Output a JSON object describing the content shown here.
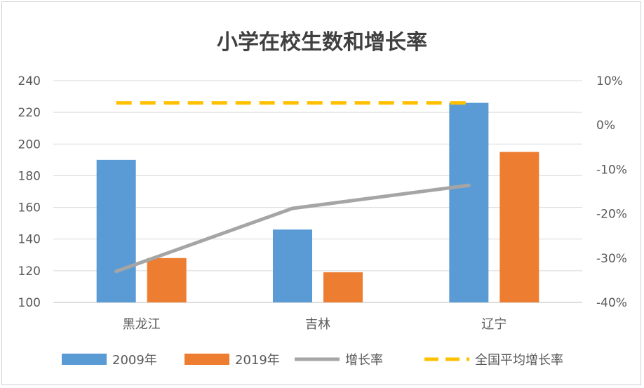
{
  "chart_data": {
    "type": "bar",
    "title": "小学在校生数和增长率",
    "categories": [
      "黑龙江",
      "吉林",
      "辽宁"
    ],
    "series": [
      {
        "name": "2009年",
        "kind": "bar",
        "axis": "left",
        "color": "#5B9BD5",
        "values": [
          190,
          146,
          226
        ]
      },
      {
        "name": "2019年",
        "kind": "bar",
        "axis": "left",
        "color": "#ED7D31",
        "values": [
          128,
          119,
          195
        ]
      },
      {
        "name": "增长率",
        "kind": "line",
        "axis": "right",
        "color": "#A5A5A5",
        "values": [
          -33,
          -18.8,
          -13.6
        ]
      },
      {
        "name": "全国平均增长率",
        "kind": "dashed-line",
        "axis": "right",
        "color": "#FFC000",
        "values": [
          5,
          5,
          5
        ]
      }
    ],
    "left_axis": {
      "min": 100,
      "max": 240,
      "step": 20,
      "tick_labels": [
        "100",
        "120",
        "140",
        "160",
        "180",
        "200",
        "220",
        "240"
      ]
    },
    "right_axis": {
      "min": -40,
      "max": 10,
      "step": 10,
      "tick_labels": [
        "-40%",
        "-30%",
        "-20%",
        "-10%",
        "0%",
        "10%"
      ]
    },
    "grid": true,
    "legend_position": "bottom"
  }
}
